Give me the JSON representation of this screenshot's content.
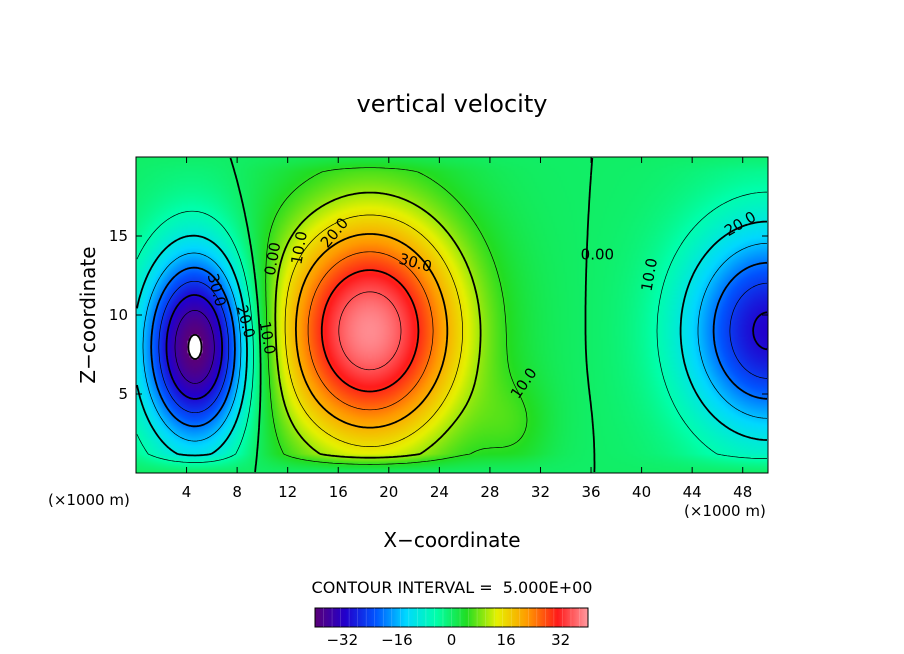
{
  "chart_data": {
    "type": "heatmap",
    "title": "vertical velocity",
    "xlabel": "X−coordinate",
    "ylabel": "Z−coordinate",
    "x_unit_left": "(×1000 m)",
    "x_unit_right": "(×1000 m)",
    "xlim": [
      0,
      50
    ],
    "ylim": [
      0,
      20
    ],
    "x_ticks": [
      4,
      8,
      12,
      16,
      20,
      24,
      28,
      32,
      36,
      40,
      44,
      48
    ],
    "y_ticks": [
      5,
      10,
      15
    ],
    "contour_interval_text": "CONTOUR INTERVAL =  5.000E+00",
    "colorbar": {
      "range": [
        -40,
        40
      ],
      "ticks": [
        -32,
        -16,
        0,
        16,
        32
      ],
      "tick_labels": [
        "−32",
        "−16",
        "0",
        "16",
        "32"
      ],
      "colors": [
        "#5a0078",
        "#2200cc",
        "#0055ff",
        "#00d8ff",
        "#00ffaa",
        "#22dd22",
        "#e6f000",
        "#ff9a00",
        "#ff1a1a",
        "#ff9aa0"
      ]
    },
    "cells": [
      {
        "x": 4.8,
        "z": 8.0,
        "w": -42
      },
      {
        "x": 18.5,
        "z": 9.0,
        "w": 39
      },
      {
        "x": 50.0,
        "z": 9.0,
        "w": -31
      }
    ],
    "contour_labels": [
      {
        "text": "0.00",
        "x": 11.2,
        "z": 13.5,
        "angle": -80
      },
      {
        "text": "10.0",
        "x": 13.3,
        "z": 14.2,
        "angle": -80
      },
      {
        "text": "20.0",
        "x": 16.0,
        "z": 15.0,
        "angle": -50
      },
      {
        "text": "30.0",
        "x": 22.0,
        "z": 13.0,
        "angle": 15
      },
      {
        "text": "10.0",
        "x": 31.0,
        "z": 5.5,
        "angle": -55
      },
      {
        "text": "0.00",
        "x": 36.5,
        "z": 13.5,
        "angle": 0
      },
      {
        "text": "10.0",
        "x": 41.0,
        "z": 12.5,
        "angle": -80
      },
      {
        "text": "20.0",
        "x": 48.0,
        "z": 15.5,
        "angle": -30
      },
      {
        "text": "30.0",
        "x": 6.0,
        "z": 11.5,
        "angle": 75
      },
      {
        "text": "20.0",
        "x": 8.3,
        "z": 9.5,
        "angle": 75
      },
      {
        "text": "10.0",
        "x": 10.0,
        "z": 8.5,
        "angle": 80
      }
    ]
  }
}
